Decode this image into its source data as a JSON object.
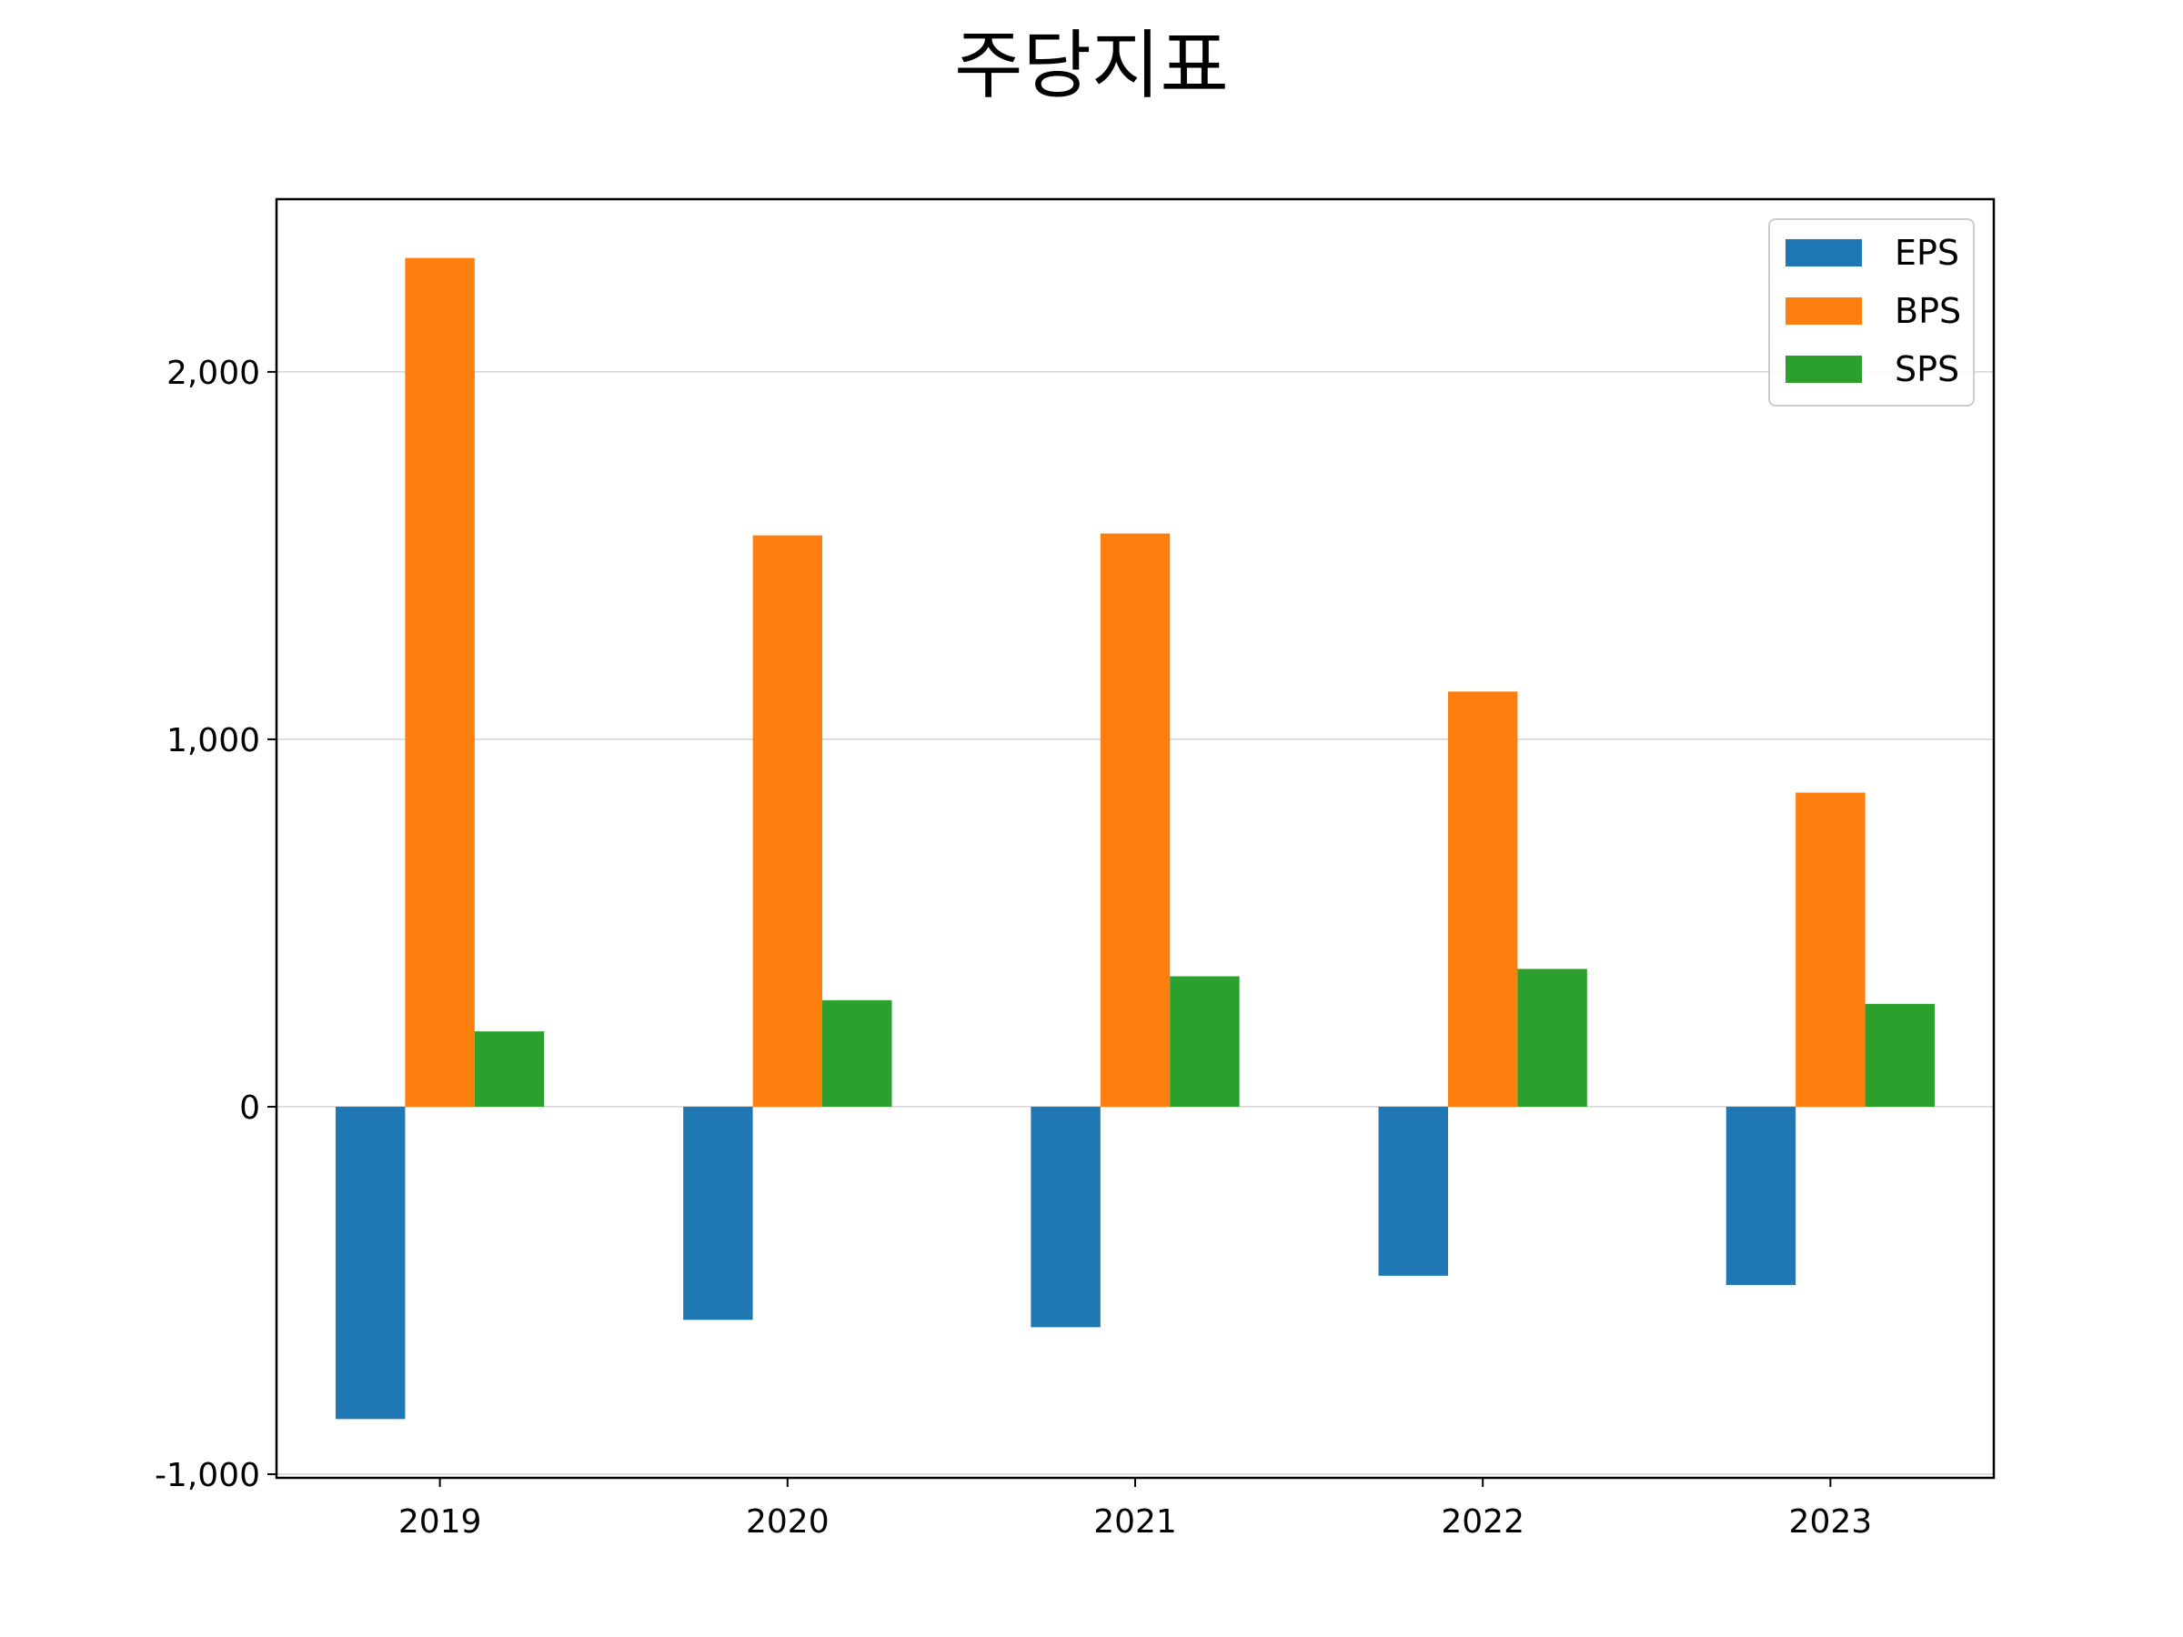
{
  "chart_data": {
    "type": "bar",
    "title": "주당지표",
    "xlabel": "",
    "ylabel": "",
    "categories": [
      "2019",
      "2020",
      "2021",
      "2022",
      "2023"
    ],
    "series": [
      {
        "name": "EPS",
        "color": "#1f77b4",
        "values": [
          -850,
          -580,
          -600,
          -460,
          -485
        ]
      },
      {
        "name": "BPS",
        "color": "#ff7f0e",
        "values": [
          2310,
          1555,
          1560,
          1130,
          855
        ]
      },
      {
        "name": "SPS",
        "color": "#2ca02c",
        "values": [
          205,
          290,
          355,
          375,
          280
        ]
      }
    ],
    "ylim": [
      -1010,
      2470
    ],
    "yticks": [
      -1000,
      0,
      1000,
      2000
    ],
    "ytick_labels": [
      "-1,000",
      "0",
      "1,000",
      "2,000"
    ],
    "grid": "y",
    "legend_position": "top-right"
  }
}
